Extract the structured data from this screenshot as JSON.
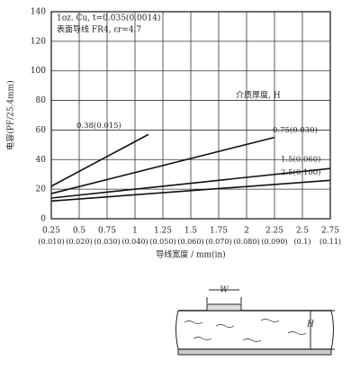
{
  "chart_data": {
    "type": "line",
    "annotations": [
      "1oz. Cu, t=0.035(0.0014)",
      "表面导线 FR4, εr=4.7",
      "介质厚度, H"
    ],
    "ylabel": "电容(PF/25.4mm)",
    "xlabel": "导线宽度 / mm(in)",
    "xlim": [
      0.25,
      2.75
    ],
    "ylim": [
      0,
      140
    ],
    "xticks": [
      0.25,
      0.5,
      0.75,
      1.0,
      1.25,
      1.5,
      1.75,
      2.0,
      2.25,
      2.5,
      2.75
    ],
    "xticks_in": [
      "(0.010)",
      "(0.020)",
      "(0.030)",
      "(0.040)",
      "(0.050)",
      "(0.060)",
      "(0.070)",
      "(0.080)",
      "(0.090)",
      "(0.1)",
      "(0.11)"
    ],
    "yticks": [
      0,
      20,
      40,
      60,
      80,
      100,
      120,
      140
    ],
    "grid": true,
    "series": [
      {
        "name": "0.38(0.015)",
        "color": "#111111",
        "x": [
          0.25,
          1.12
        ],
        "values": [
          22,
          57
        ]
      },
      {
        "name": "0.75(0.030)",
        "color": "#111111",
        "x": [
          0.25,
          2.25
        ],
        "values": [
          17,
          55
        ]
      },
      {
        "name": "1.5(0.060)",
        "color": "#111111",
        "x": [
          0.25,
          2.75
        ],
        "values": [
          14,
          34
        ]
      },
      {
        "name": "2.5(0.100)",
        "color": "#111111",
        "x": [
          0.25,
          2.75
        ],
        "values": [
          12,
          26
        ]
      }
    ]
  },
  "diagram": {
    "width_label": "W",
    "height_label": "H"
  }
}
